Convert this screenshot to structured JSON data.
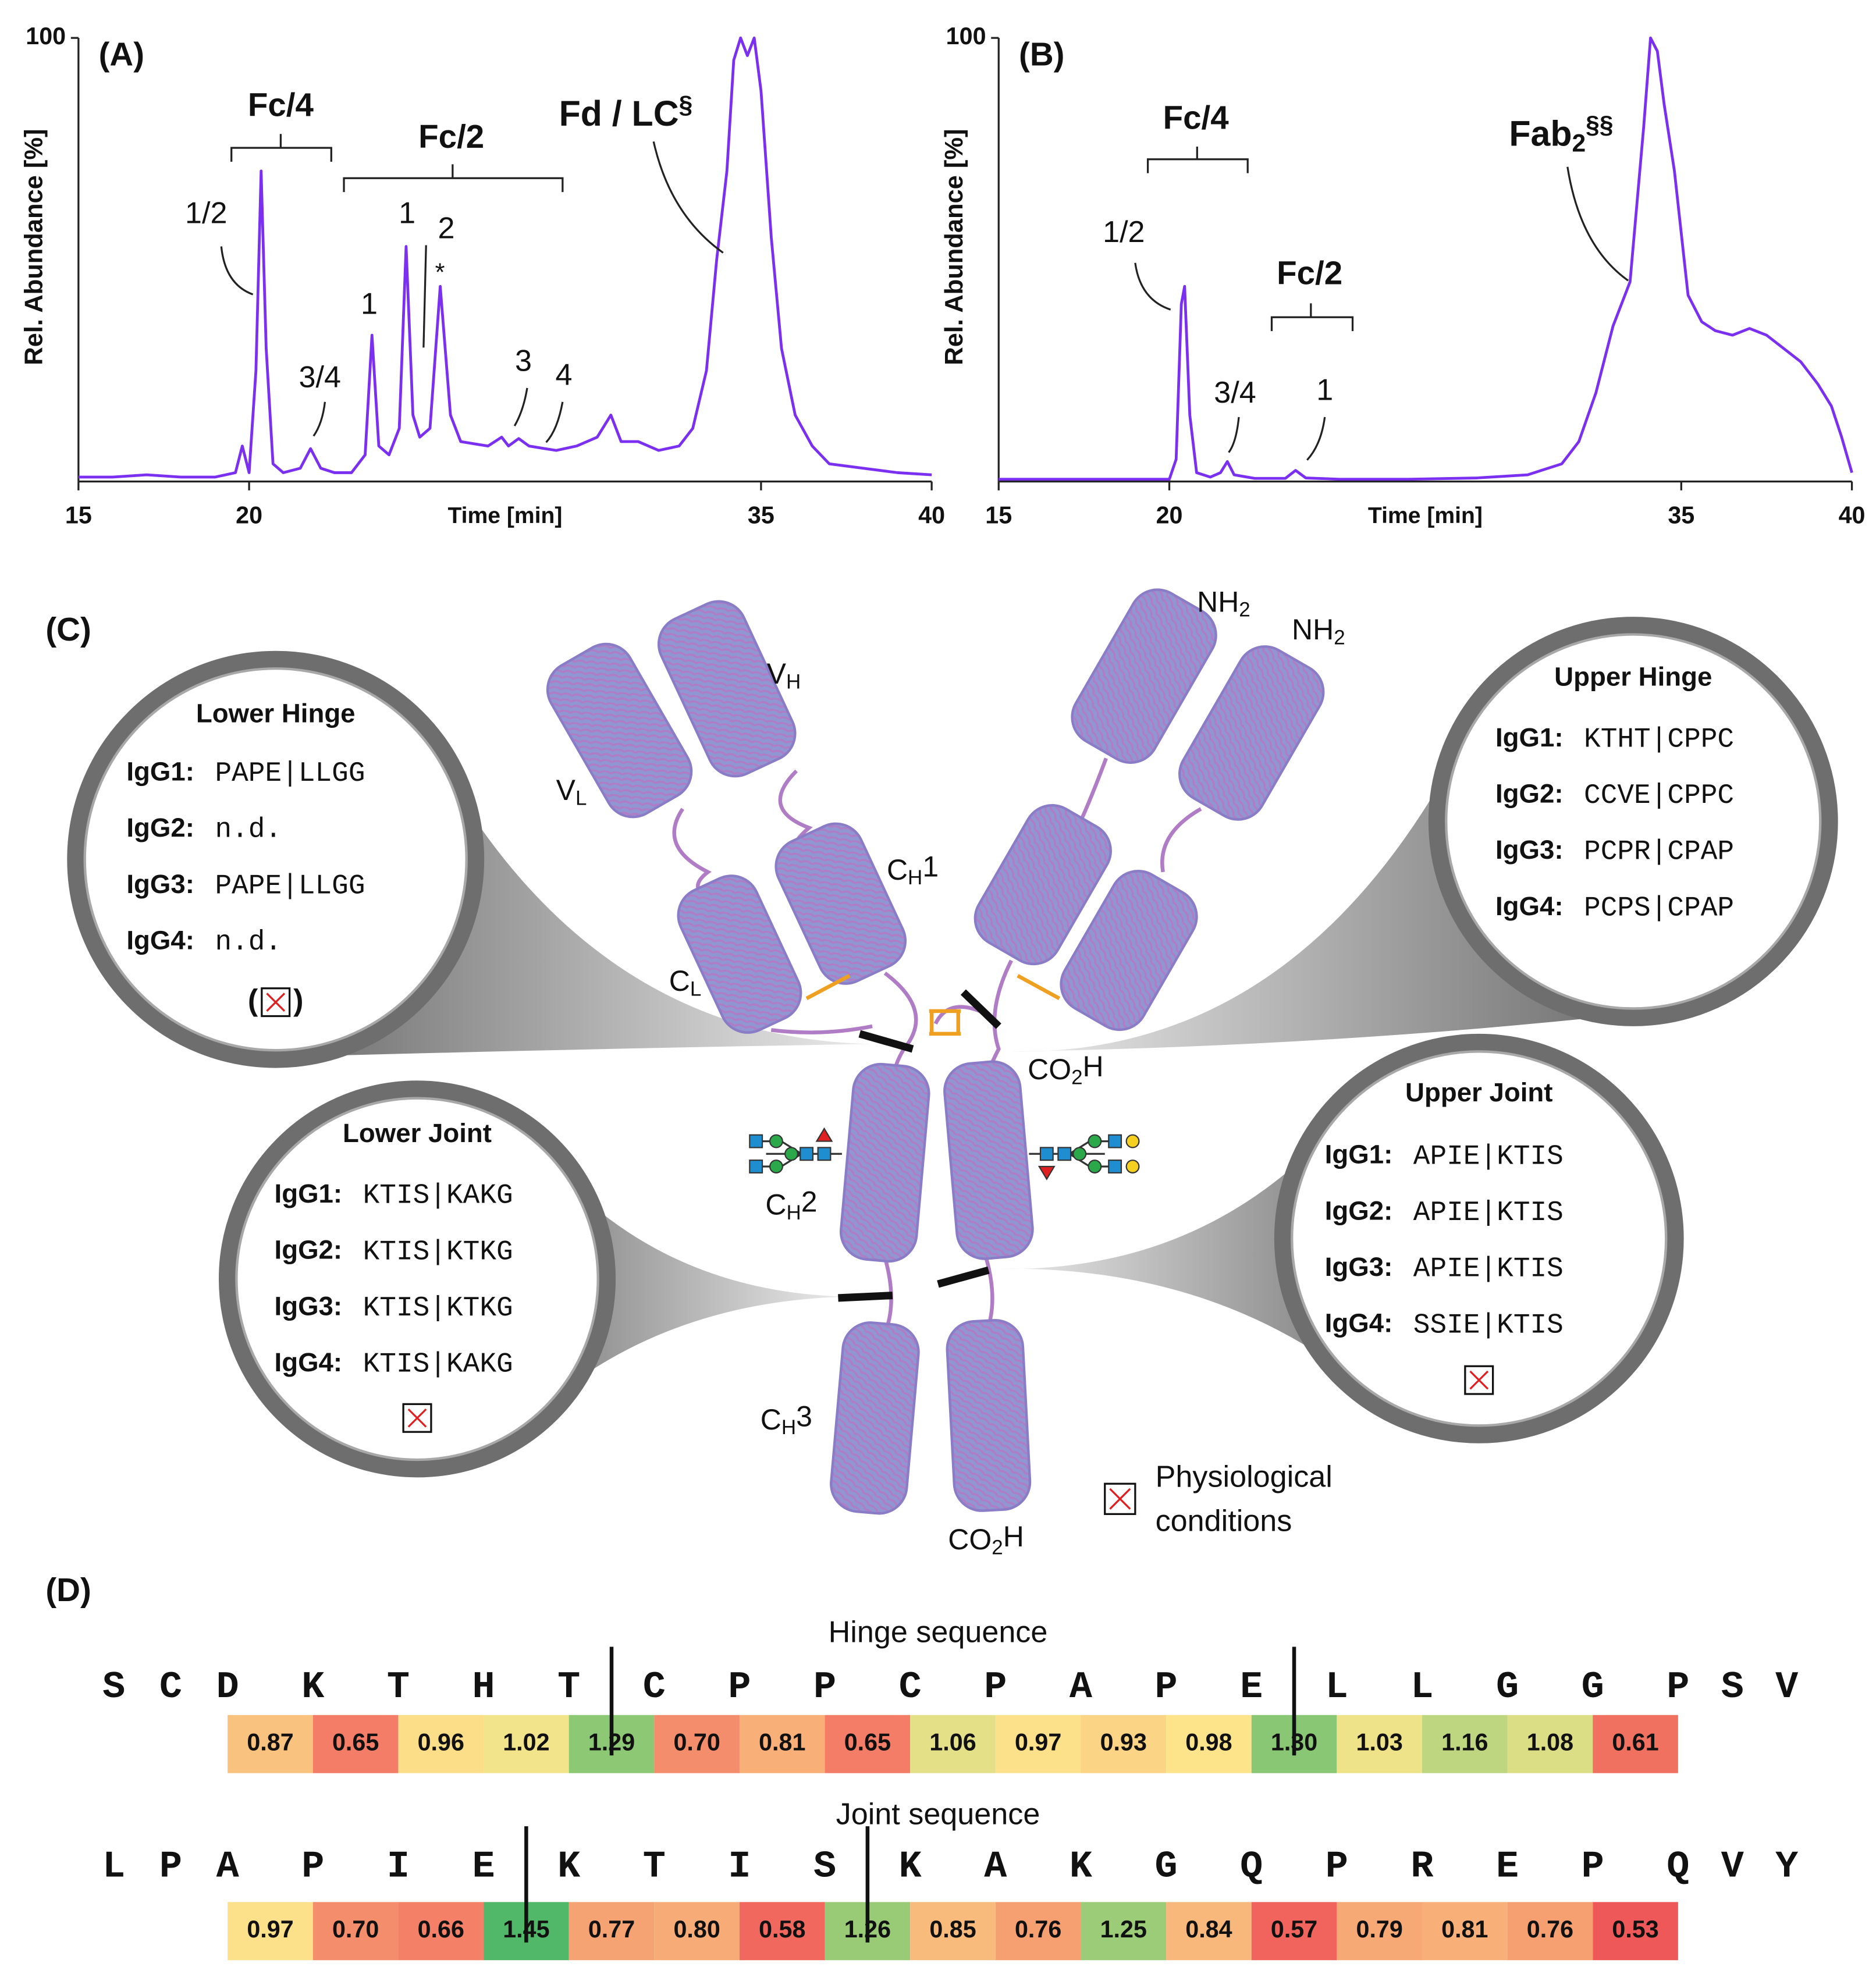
{
  "chart_data": [
    {
      "type": "line",
      "panel_label": "(A)",
      "x_label": "Time [min]",
      "y_label": "Rel. Abundance [%]",
      "color": "#7b2ff0",
      "xlim": [
        15,
        40
      ],
      "xticks": [
        15,
        20,
        35,
        40
      ],
      "ylim": [
        0,
        100
      ],
      "yticks": [
        100
      ],
      "x": [
        15,
        16,
        17,
        18,
        19,
        19.6,
        19.8,
        20.0,
        20.2,
        20.35,
        20.5,
        20.7,
        21.0,
        21.5,
        21.8,
        22.1,
        22.5,
        23.0,
        23.4,
        23.6,
        23.8,
        24.1,
        24.4,
        24.6,
        24.8,
        25.0,
        25.3,
        25.6,
        25.9,
        26.2,
        26.6,
        27.0,
        27.4,
        27.6,
        27.9,
        28.2,
        28.6,
        29.0,
        29.6,
        30.2,
        30.6,
        30.9,
        31.4,
        32.0,
        32.6,
        33.0,
        33.4,
        33.7,
        34.0,
        34.2,
        34.4,
        34.6,
        34.8,
        35.0,
        35.3,
        35.6,
        36.0,
        36.5,
        37.0,
        38.0,
        39.0,
        40.0
      ],
      "values": [
        1,
        1,
        1.5,
        1,
        1,
        2,
        8,
        2,
        25,
        70,
        30,
        4,
        2,
        3,
        7.4,
        3,
        2,
        2,
        6,
        33,
        8,
        6,
        12,
        53,
        15,
        10,
        12,
        44,
        15,
        9,
        8.5,
        8,
        10,
        8,
        9.7,
        8,
        7.5,
        7,
        8,
        10,
        15,
        9,
        9,
        7,
        8,
        12,
        25,
        50,
        70,
        95,
        100,
        96,
        100,
        88,
        55,
        30,
        15,
        8,
        4,
        3,
        2,
        1.5
      ],
      "annotations": [
        [
          {
            "text": "Fc/4"
          }
        ],
        [
          {
            "text": "Fc/2"
          }
        ],
        [
          {
            "text": "Fd / LC"
          },
          {
            "sup": "§"
          }
        ],
        [
          {
            "text": "1/2"
          }
        ],
        [
          {
            "text": "3/4"
          }
        ],
        [
          {
            "text": "1"
          }
        ],
        [
          {
            "text": "1"
          }
        ],
        [
          {
            "text": "2"
          }
        ],
        [
          {
            "text": "*"
          }
        ],
        [
          {
            "text": "3"
          }
        ],
        [
          {
            "text": "4"
          }
        ]
      ]
    },
    {
      "type": "line",
      "panel_label": "(B)",
      "x_label": "Time [min]",
      "y_label": "Rel. Abundance [%]",
      "color": "#7b2ff0",
      "xlim": [
        15,
        40
      ],
      "xticks": [
        15,
        20,
        35,
        40
      ],
      "ylim": [
        0,
        100
      ],
      "yticks": [
        100
      ],
      "x": [
        15,
        17,
        19,
        20.0,
        20.2,
        20.35,
        20.45,
        20.6,
        20.8,
        21.2,
        21.5,
        21.7,
        21.9,
        22.5,
        23.4,
        23.7,
        24.0,
        25,
        27,
        29,
        30.5,
        31.5,
        32.0,
        32.5,
        33.0,
        33.5,
        33.9,
        34.1,
        34.3,
        34.5,
        34.8,
        35.2,
        35.6,
        36.0,
        36.5,
        37.0,
        37.5,
        38.0,
        38.5,
        39.0,
        39.4,
        39.7,
        40.0
      ],
      "values": [
        0.5,
        0.5,
        0.5,
        0.5,
        5,
        40,
        44,
        15,
        2,
        1,
        2,
        4.5,
        1.5,
        0.7,
        0.7,
        2.5,
        0.8,
        0.5,
        0.5,
        0.8,
        1.5,
        4,
        9,
        20,
        35,
        45,
        80,
        100,
        97,
        85,
        70,
        42,
        36,
        34,
        33,
        34.5,
        33,
        30,
        27,
        22,
        17,
        10,
        2
      ],
      "annotations": [
        [
          {
            "text": "Fc/4"
          }
        ],
        [
          {
            "text": "Fc/2"
          }
        ],
        [
          {
            "text": "Fab"
          },
          {
            "sub": "2"
          },
          {
            "sup": "§§"
          }
        ],
        [
          {
            "text": "1/2"
          }
        ],
        [
          {
            "text": "3/4"
          }
        ],
        [
          {
            "text": "1"
          }
        ]
      ]
    }
  ],
  "panel_c": {
    "label": "(C)",
    "domain_labels": [
      [
        {
          "text": "NH"
        },
        {
          "sub": "2"
        }
      ],
      [
        {
          "text": "NH"
        },
        {
          "sub": "2"
        }
      ],
      [
        {
          "text": "V"
        },
        {
          "sub": "H"
        }
      ],
      [
        {
          "text": "V"
        },
        {
          "sub": "L"
        }
      ],
      [
        {
          "text": "C"
        },
        {
          "sub": "H"
        },
        {
          "text": "1"
        }
      ],
      [
        {
          "text": "C"
        },
        {
          "sub": "L"
        }
      ],
      [
        {
          "text": "CO"
        },
        {
          "sub": "2"
        },
        {
          "text": "H"
        }
      ],
      [
        {
          "text": "C"
        },
        {
          "sub": "H"
        },
        {
          "text": "2"
        }
      ],
      [
        {
          "text": "C"
        },
        {
          "sub": "H"
        },
        {
          "text": "3"
        }
      ],
      [
        {
          "text": "CO"
        },
        {
          "sub": "2"
        },
        {
          "text": "H"
        }
      ]
    ],
    "legend": [
      "Physiological",
      "conditions"
    ],
    "circles": [
      {
        "title": "Lower Hinge",
        "physiological": true,
        "brackets": [
          "(",
          ")"
        ],
        "rows": [
          {
            "isotype": "IgG1:",
            "sequence": "PAPE|LLGG"
          },
          {
            "isotype": "IgG2:",
            "sequence": "n.d."
          },
          {
            "isotype": "IgG3:",
            "sequence": "PAPE|LLGG"
          },
          {
            "isotype": "IgG4:",
            "sequence": "n.d."
          }
        ]
      },
      {
        "title": "Upper Hinge",
        "physiological": false,
        "rows": [
          {
            "isotype": "IgG1:",
            "sequence": "KTHT|CPPC"
          },
          {
            "isotype": "IgG2:",
            "sequence": "CCVE|CPPC"
          },
          {
            "isotype": "IgG3:",
            "sequence": "PCPR|CPAP"
          },
          {
            "isotype": "IgG4:",
            "sequence": "PCPS|CPAP"
          }
        ]
      },
      {
        "title": "Lower Joint",
        "physiological": true,
        "rows": [
          {
            "isotype": "IgG1:",
            "sequence": "KTIS|KAKG"
          },
          {
            "isotype": "IgG2:",
            "sequence": "KTIS|KTKG"
          },
          {
            "isotype": "IgG3:",
            "sequence": "KTIS|KTKG"
          },
          {
            "isotype": "IgG4:",
            "sequence": "KTIS|KAKG"
          }
        ]
      },
      {
        "title": "Upper Joint",
        "physiological": true,
        "rows": [
          {
            "isotype": "IgG1:",
            "sequence": "APIE|KTIS"
          },
          {
            "isotype": "IgG2:",
            "sequence": "APIE|KTIS"
          },
          {
            "isotype": "IgG3:",
            "sequence": "APIE|KTIS"
          },
          {
            "isotype": "IgG4:",
            "sequence": "SSIE|KTIS"
          }
        ]
      }
    ]
  },
  "panel_d": {
    "label": "(D)",
    "colors": [
      "#ef5858",
      "#fde78c",
      "#52b869"
    ],
    "sequences": [
      {
        "title": "Hinge sequence",
        "segments": [
          [
            "S",
            "C",
            "D",
            "K",
            "T",
            "H",
            "T"
          ],
          [
            "C",
            "P",
            "P",
            "C",
            "P",
            "A",
            "P",
            "E"
          ],
          [
            "L",
            "L",
            "G",
            "G",
            "P",
            "S",
            "V"
          ]
        ],
        "values": [
          0.87,
          0.65,
          0.96,
          1.02,
          1.29,
          0.7,
          0.81,
          0.65,
          1.06,
          0.97,
          0.93,
          0.98,
          1.3,
          1.03,
          1.16,
          1.08,
          0.61
        ],
        "value_labels": [
          "0.87",
          "0.65",
          "0.96",
          "1.02",
          "1.29",
          "0.70",
          "0.81",
          "0.65",
          "1.06",
          "0.97",
          "0.93",
          "0.98",
          "1.30",
          "1.03",
          "1.16",
          "1.08",
          "0.61"
        ]
      },
      {
        "title": "Joint sequence",
        "segments": [
          [
            "L",
            "P",
            "A",
            "P",
            "I",
            "E"
          ],
          [
            "K",
            "T",
            "I",
            "S"
          ],
          [
            "K",
            "A",
            "K",
            "G",
            "Q",
            "P",
            "R",
            "E",
            "P",
            "Q",
            "V",
            "Y"
          ]
        ],
        "values": [
          0.97,
          0.7,
          0.66,
          1.45,
          0.77,
          0.8,
          0.58,
          1.26,
          0.85,
          0.76,
          1.25,
          0.84,
          0.57,
          0.79,
          0.81,
          0.76,
          0.53
        ],
        "value_labels": [
          "0.97",
          "0.70",
          "0.66",
          "1.45",
          "0.77",
          "0.80",
          "0.58",
          "1.26",
          "0.85",
          "0.76",
          "1.25",
          "0.84",
          "0.57",
          "0.79",
          "0.81",
          "0.76",
          "0.53"
        ]
      }
    ]
  }
}
